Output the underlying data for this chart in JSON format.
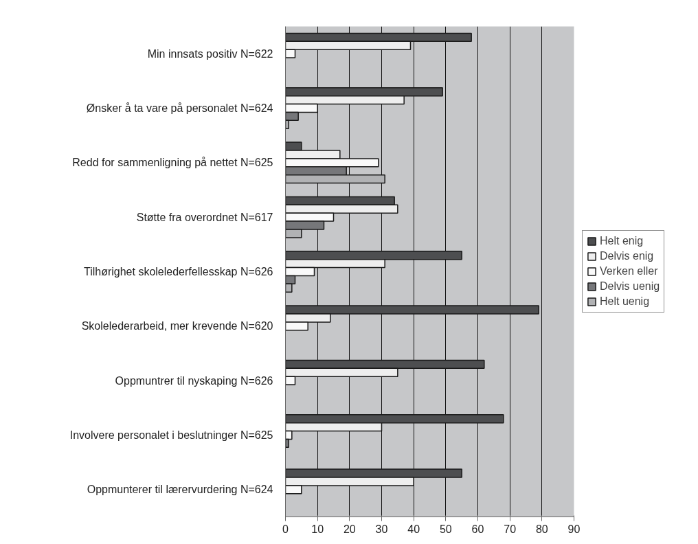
{
  "chart_data": {
    "type": "bar",
    "orientation": "horizontal",
    "categories": [
      "Min innsats positiv N=622",
      "Ønsker å ta vare på personalet N=624",
      "Redd for sammenligning på nettet N=625",
      "Støtte fra overordnet N=617",
      "Tilhørighet skolelederfellesskap N=626",
      "Skolelederarbeid, mer krevende N=620",
      "Oppmuntrer til nyskaping N=626",
      "Involvere personalet i beslutninger N=625",
      "Oppmunterer til lærervurdering N=624"
    ],
    "series": [
      {
        "name": "Helt enig",
        "color": "#4d4e50",
        "values": [
          58,
          49,
          5,
          34,
          55,
          79,
          62,
          68,
          55
        ]
      },
      {
        "name": "Delvis enig",
        "color": "#eeeeee",
        "values": [
          39,
          37,
          17,
          35,
          31,
          14,
          35,
          30,
          40
        ]
      },
      {
        "name": "Verken eller",
        "color": "#f9f9f9",
        "values": [
          3,
          10,
          29,
          15,
          9,
          7,
          3,
          2,
          5
        ]
      },
      {
        "name": "Delvis uenig",
        "color": "#76777a",
        "values": [
          null,
          4,
          19,
          12,
          3,
          null,
          null,
          1,
          null
        ]
      },
      {
        "name": "Helt uenig",
        "color": "#b1b2b4",
        "values": [
          null,
          1,
          31,
          5,
          2,
          null,
          null,
          null,
          null
        ]
      }
    ],
    "xlim": [
      0,
      90
    ],
    "xticks": [
      0,
      10,
      20,
      30,
      40,
      50,
      60,
      70,
      80,
      90
    ],
    "grid": "x",
    "legend": "right"
  }
}
